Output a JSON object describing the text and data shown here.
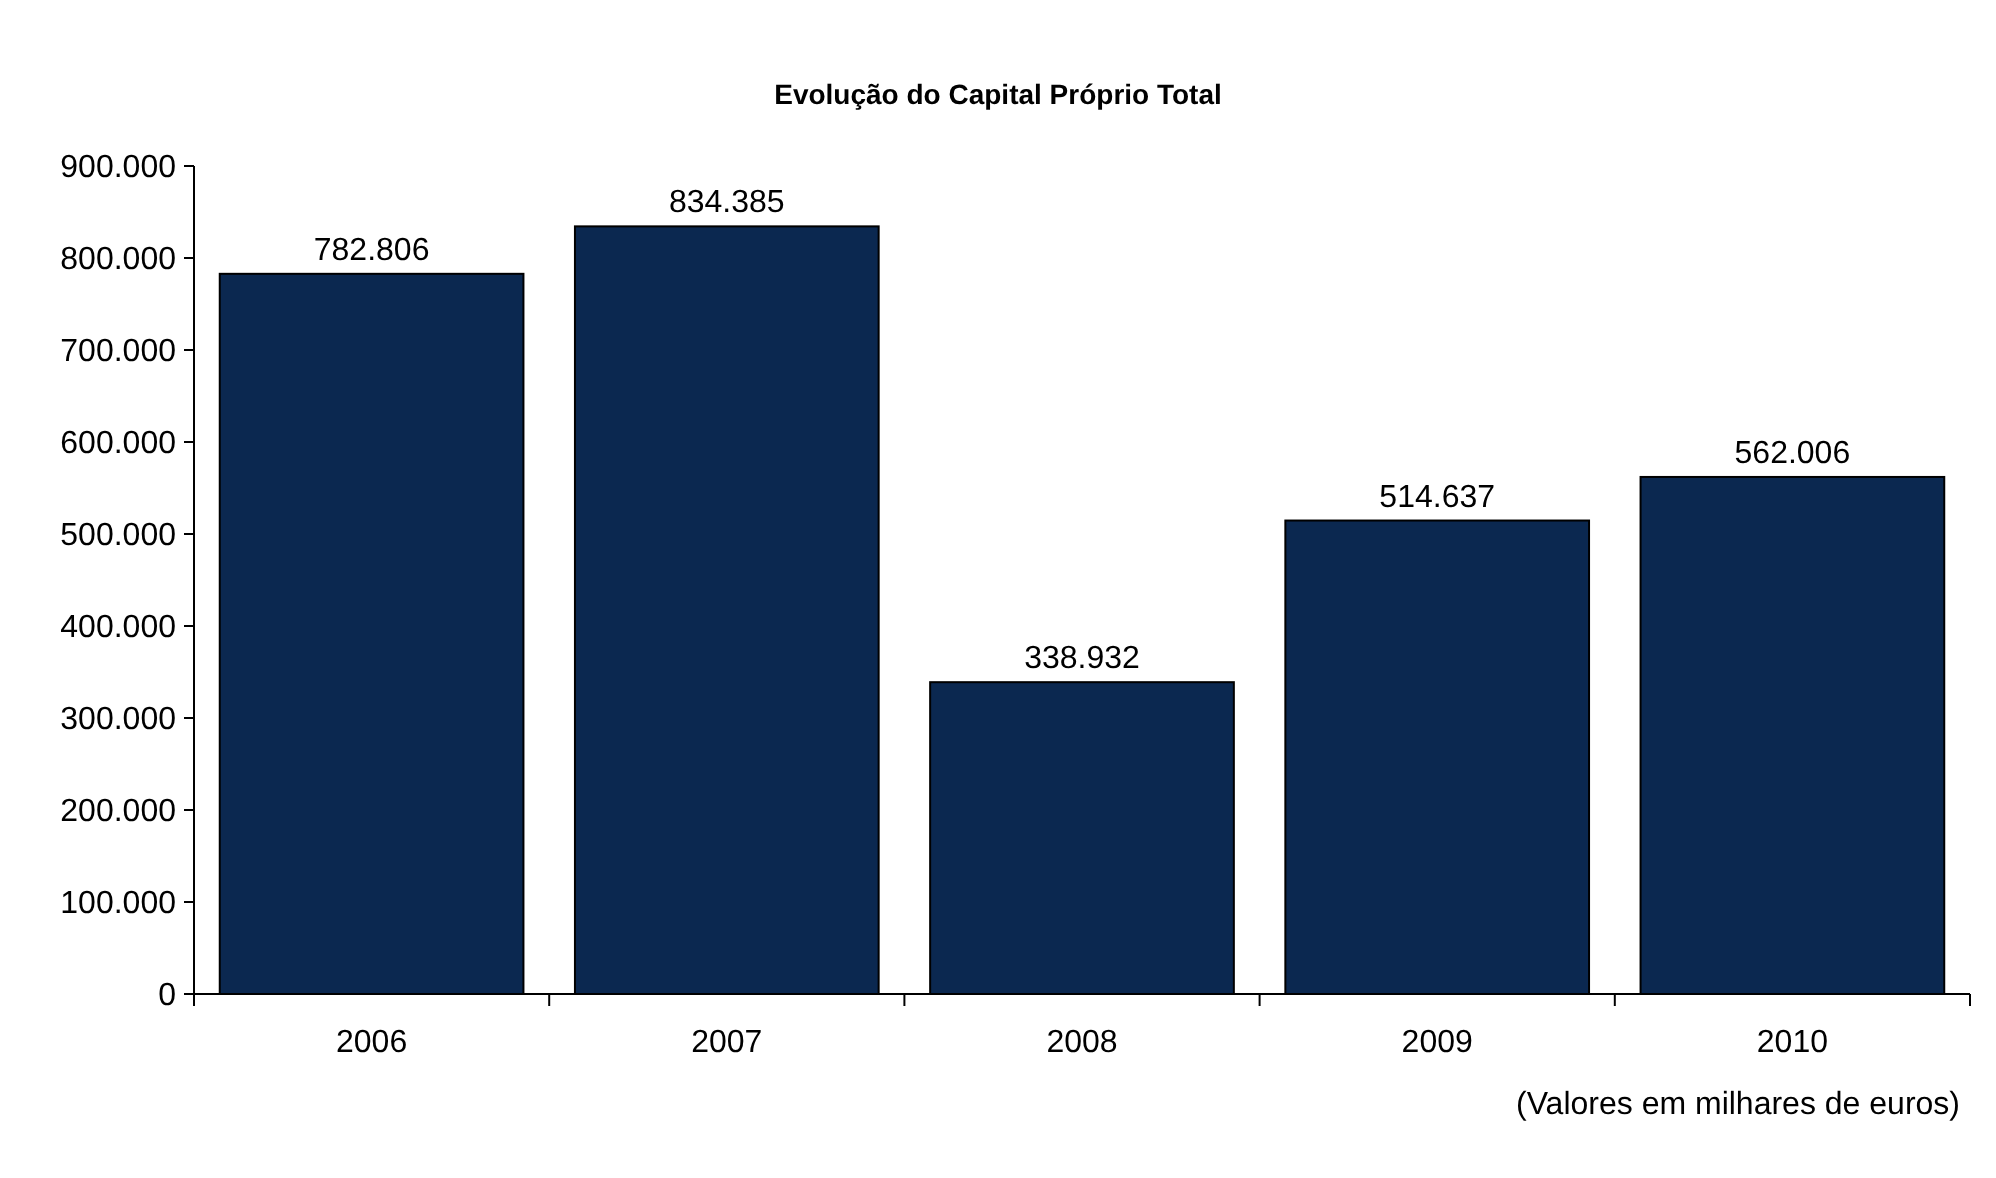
{
  "chart_data": {
    "type": "bar",
    "title": "Evolução do Capital Próprio Total",
    "categories": [
      "2006",
      "2007",
      "2008",
      "2009",
      "2010"
    ],
    "values": [
      782806,
      834385,
      338932,
      514637,
      562006
    ],
    "value_labels": [
      "782.806",
      "834.385",
      "338.932",
      "514.637",
      "562.006"
    ],
    "color": "#0b2850",
    "ylim": [
      0,
      900000
    ],
    "yticks": [
      0,
      {
        "value": 100000,
        "label": "100.000"
      },
      {
        "value": 200000,
        "label": "200.000"
      },
      {
        "value": 300000,
        "label": "300.000"
      },
      {
        "value": 400000,
        "label": "400.000"
      },
      {
        "value": 500000,
        "label": "500.000"
      },
      {
        "value": 600000,
        "label": "600.000"
      },
      {
        "value": 700000,
        "label": "700.000"
      },
      {
        "value": 800000,
        "label": "800.000"
      },
      {
        "value": 900000,
        "label": "900.000"
      }
    ],
    "grid": false,
    "annotations": [
      "(Valores em milhares de euros)"
    ]
  }
}
